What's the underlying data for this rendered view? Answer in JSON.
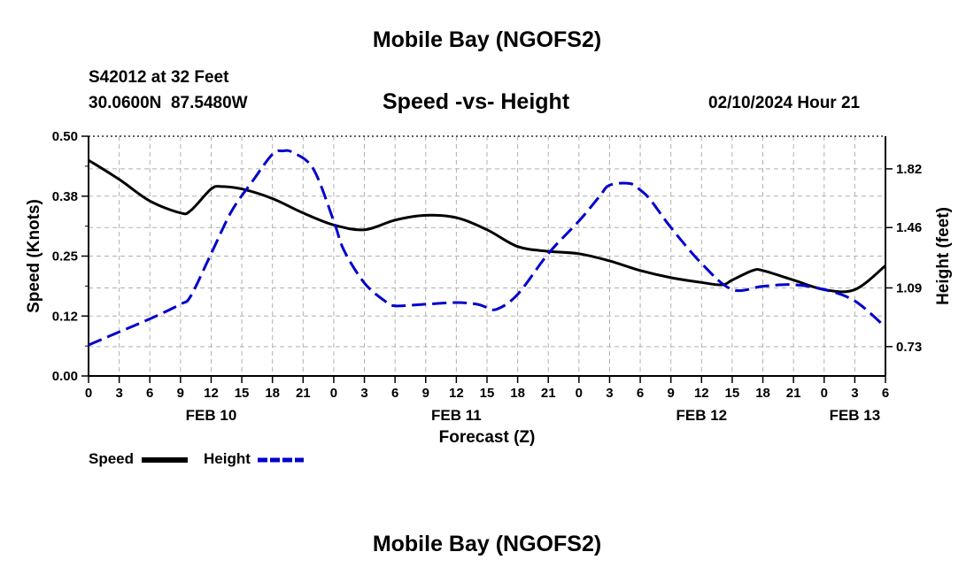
{
  "page": {
    "title_top": "Mobile Bay (NGOFS2)",
    "title_bottom": "Mobile Bay (NGOFS2)",
    "station_line": "S42012 at 32 Feet",
    "coords_line": "30.0600N  87.5480W",
    "datetime": "02/10/2024 Hour 21"
  },
  "colors": {
    "speed": "#000000",
    "height": "#0000cc",
    "grid": "#b0b0b0"
  },
  "chart_data": {
    "type": "line",
    "title": "Speed -vs- Height",
    "xlabel": "Forecast (Z)",
    "ylabel_left": "Speed (Knots)",
    "ylabel_right": "Height (feet)",
    "x_unit": "hours from FEB 10 00Z",
    "xlim": [
      0,
      78
    ],
    "ylim_left": [
      0,
      0.5
    ],
    "ylim_right": [
      0.55,
      2.02
    ],
    "y_ticks_left": [
      "0.00",
      "0.12",
      "0.25",
      "0.38",
      "0.50"
    ],
    "y_ticks_left_values": [
      0,
      0.125,
      0.25,
      0.375,
      0.5
    ],
    "y_ticks_right": [
      "0.73",
      "1.09",
      "1.46",
      "1.82"
    ],
    "y_ticks_right_values": [
      0.73,
      1.09,
      1.46,
      1.82
    ],
    "x_ticks": [
      0,
      3,
      6,
      9,
      12,
      15,
      18,
      21,
      24,
      27,
      30,
      33,
      36,
      39,
      42,
      45,
      48,
      51,
      54,
      57,
      60,
      63,
      66,
      69,
      72,
      75,
      78
    ],
    "x_tick_labels": [
      "0",
      "3",
      "6",
      "9",
      "12",
      "15",
      "18",
      "21",
      "0",
      "3",
      "6",
      "9",
      "12",
      "15",
      "18",
      "21",
      "0",
      "3",
      "6",
      "9",
      "12",
      "15",
      "18",
      "21",
      "0",
      "3",
      "6"
    ],
    "date_labels": [
      {
        "label": "FEB 10",
        "x": 12
      },
      {
        "label": "FEB 11",
        "x": 36
      },
      {
        "label": "FEB 12",
        "x": 60
      },
      {
        "label": "FEB 13",
        "x": 75
      }
    ],
    "grid": true,
    "series": [
      {
        "name": "Speed",
        "axis": "left",
        "style": "solid",
        "x": [
          0,
          3,
          6,
          9,
          10,
          12,
          13,
          15,
          18,
          21,
          24,
          27,
          30,
          33,
          36,
          39,
          42,
          45,
          48,
          51,
          54,
          57,
          60,
          62,
          63,
          65,
          66,
          69,
          72,
          75,
          78
        ],
        "values": [
          0.45,
          0.41,
          0.365,
          0.34,
          0.345,
          0.39,
          0.395,
          0.39,
          0.37,
          0.34,
          0.315,
          0.305,
          0.325,
          0.335,
          0.33,
          0.305,
          0.27,
          0.26,
          0.255,
          0.24,
          0.22,
          0.205,
          0.195,
          0.19,
          0.2,
          0.22,
          0.22,
          0.2,
          0.18,
          0.18,
          0.23
        ]
      },
      {
        "name": "Height",
        "axis": "right",
        "style": "dashed",
        "x": [
          0,
          3,
          6,
          9,
          10,
          12,
          14,
          16,
          18,
          19,
          20,
          22,
          24,
          25,
          27,
          29,
          30,
          33,
          36,
          38,
          39,
          40,
          42,
          45,
          48,
          50,
          51,
          53,
          54,
          55,
          57,
          60,
          63,
          66,
          69,
          72,
          75,
          78
        ],
        "values": [
          0.74,
          0.82,
          0.9,
          0.99,
          1.04,
          1.3,
          1.56,
          1.74,
          1.91,
          1.93,
          1.92,
          1.82,
          1.5,
          1.32,
          1.12,
          1.01,
          0.98,
          0.99,
          1.0,
          0.99,
          0.97,
          0.96,
          1.05,
          1.3,
          1.5,
          1.65,
          1.72,
          1.73,
          1.69,
          1.63,
          1.46,
          1.24,
          1.08,
          1.1,
          1.11,
          1.08,
          1.01,
          0.85
        ]
      }
    ],
    "legend": [
      {
        "label": "Speed",
        "style": "solid"
      },
      {
        "label": "Height",
        "style": "dashed"
      }
    ]
  }
}
